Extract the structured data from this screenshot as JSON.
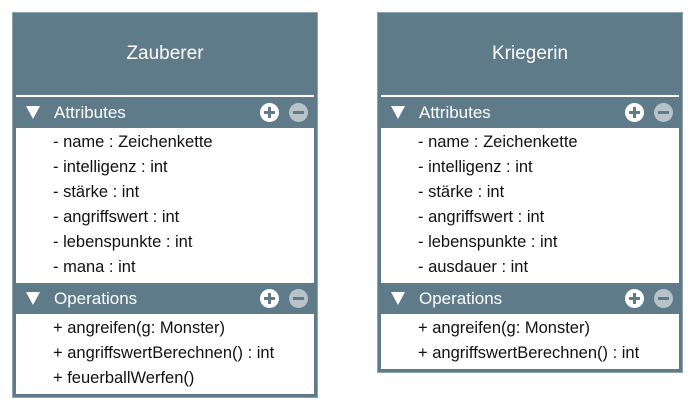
{
  "classes": [
    {
      "name": "Zauberer",
      "attributes_label": "Attributes",
      "operations_label": "Operations",
      "attributes": [
        "- name : Zeichenkette",
        "- intelligenz : int",
        "- stärke : int",
        "- angriffswert : int",
        "- lebenspunkte : int",
        "- mana : int"
      ],
      "operations": [
        "+ angreifen(g: Monster)",
        "+ angriffswertBerechnen() : int",
        "+ feuerballWerfen()"
      ]
    },
    {
      "name": "Kriegerin",
      "attributes_label": "Attributes",
      "operations_label": "Operations",
      "attributes": [
        "- name : Zeichenkette",
        "- intelligenz : int",
        "- stärke : int",
        "- angriffswert : int",
        "- lebenspunkte : int",
        "- ausdauer : int"
      ],
      "operations": [
        "+ angreifen(g: Monster)",
        "+ angriffswertBerechnen() : int"
      ]
    }
  ],
  "colors": {
    "header": "#5f7a89",
    "body": "#ffffff",
    "minus_button": "#b8c3c9"
  },
  "icons": {
    "collapse": "triangle-down-icon",
    "add": "plus-circle-icon",
    "remove": "minus-circle-icon"
  }
}
